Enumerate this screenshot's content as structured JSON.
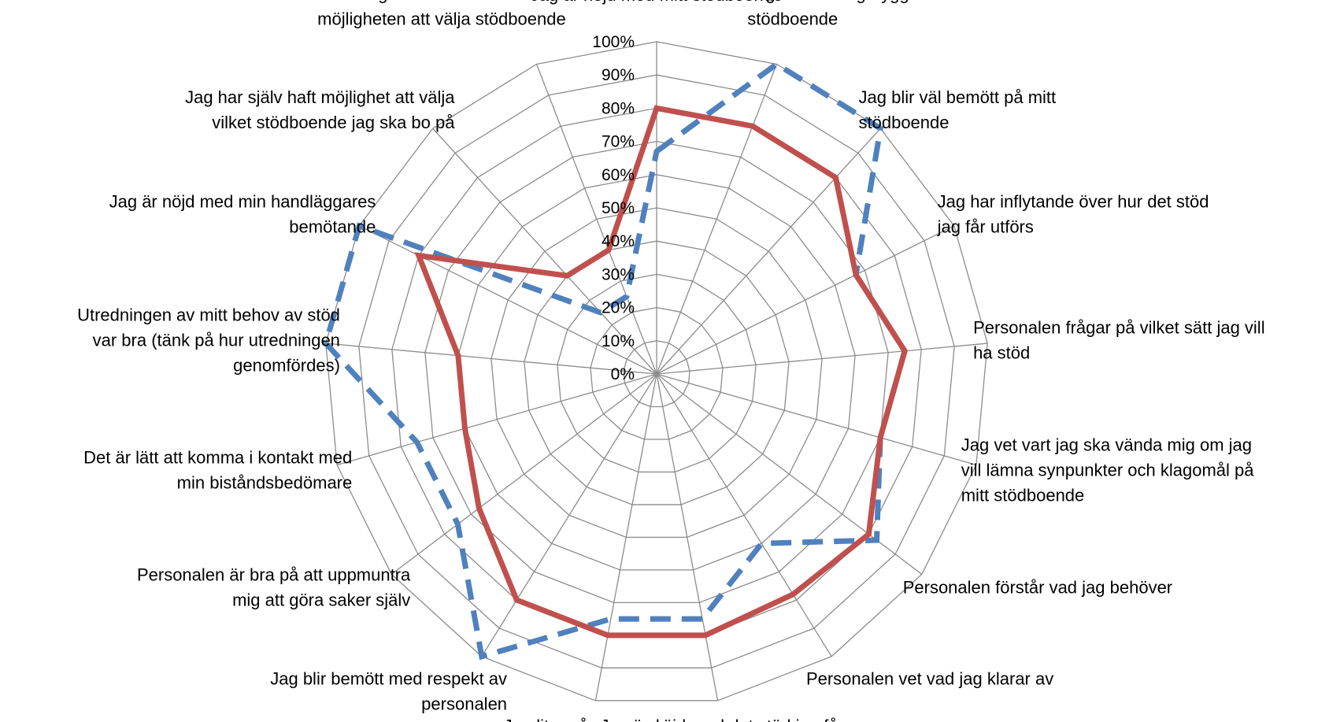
{
  "chart_data": {
    "type": "radar",
    "title": "",
    "rlim": [
      0,
      100
    ],
    "tick_labels": [
      "0%",
      "10%",
      "20%",
      "30%",
      "40%",
      "50%",
      "60%",
      "70%",
      "80%",
      "90%",
      "100%"
    ],
    "grid": true,
    "legend": "none",
    "categories": [
      [
        "Jag är nöjd med mitt stödboende"
      ],
      [
        "Jag känner mig trygg i mitt",
        "stödboende"
      ],
      [
        "Jag blir väl bemött på mitt",
        "stödboende"
      ],
      [
        "Jag har inflytande över hur det stöd",
        "jag får utförs"
      ],
      [
        "Personalen frågar på vilket sätt jag vill",
        "ha stöd"
      ],
      [
        "Jag vet vart jag ska vända mig om jag",
        "vill lämna synpunkter och klagomål på",
        "mitt stödboende"
      ],
      [
        "Personalen förstår vad jag behöver"
      ],
      [
        "Personalen vet vad jag klarar av"
      ],
      [
        "Jag är nöjd med det stöd jag får"
      ],
      [
        "Jag litar på personalen"
      ],
      [
        "Jag blir bemött med respekt av",
        "personalen"
      ],
      [
        "Personalen är bra på att uppmuntra",
        "mig att göra saker själv"
      ],
      [
        "Det är lätt att komma i kontakt med",
        "min biståndsbedömare"
      ],
      [
        "Utredningen av mitt behov av stöd",
        "var bra (tänk på hur utredningen",
        "genomfördes)"
      ],
      [
        "Jag är nöjd med min handläggares",
        "bemötande"
      ],
      [
        "Jag har själv haft möjlighet att välja",
        "vilket stödboende jag ska bo på"
      ],
      [
        "Jag har fått information om",
        "möjligheten att välja stödboende"
      ]
    ],
    "series": [
      {
        "color": "#c0504d",
        "style": "solid",
        "values": [
          80,
          80,
          80,
          67,
          75,
          70,
          80,
          78,
          80,
          80,
          80,
          67,
          60,
          60,
          80,
          40,
          40
        ]
      },
      {
        "color": "#4f81bd",
        "style": "dashed",
        "values": [
          67,
          100,
          100,
          67,
          75,
          70,
          83,
          60,
          75,
          75,
          100,
          75,
          75,
          100,
          100,
          25,
          25
        ]
      }
    ]
  }
}
